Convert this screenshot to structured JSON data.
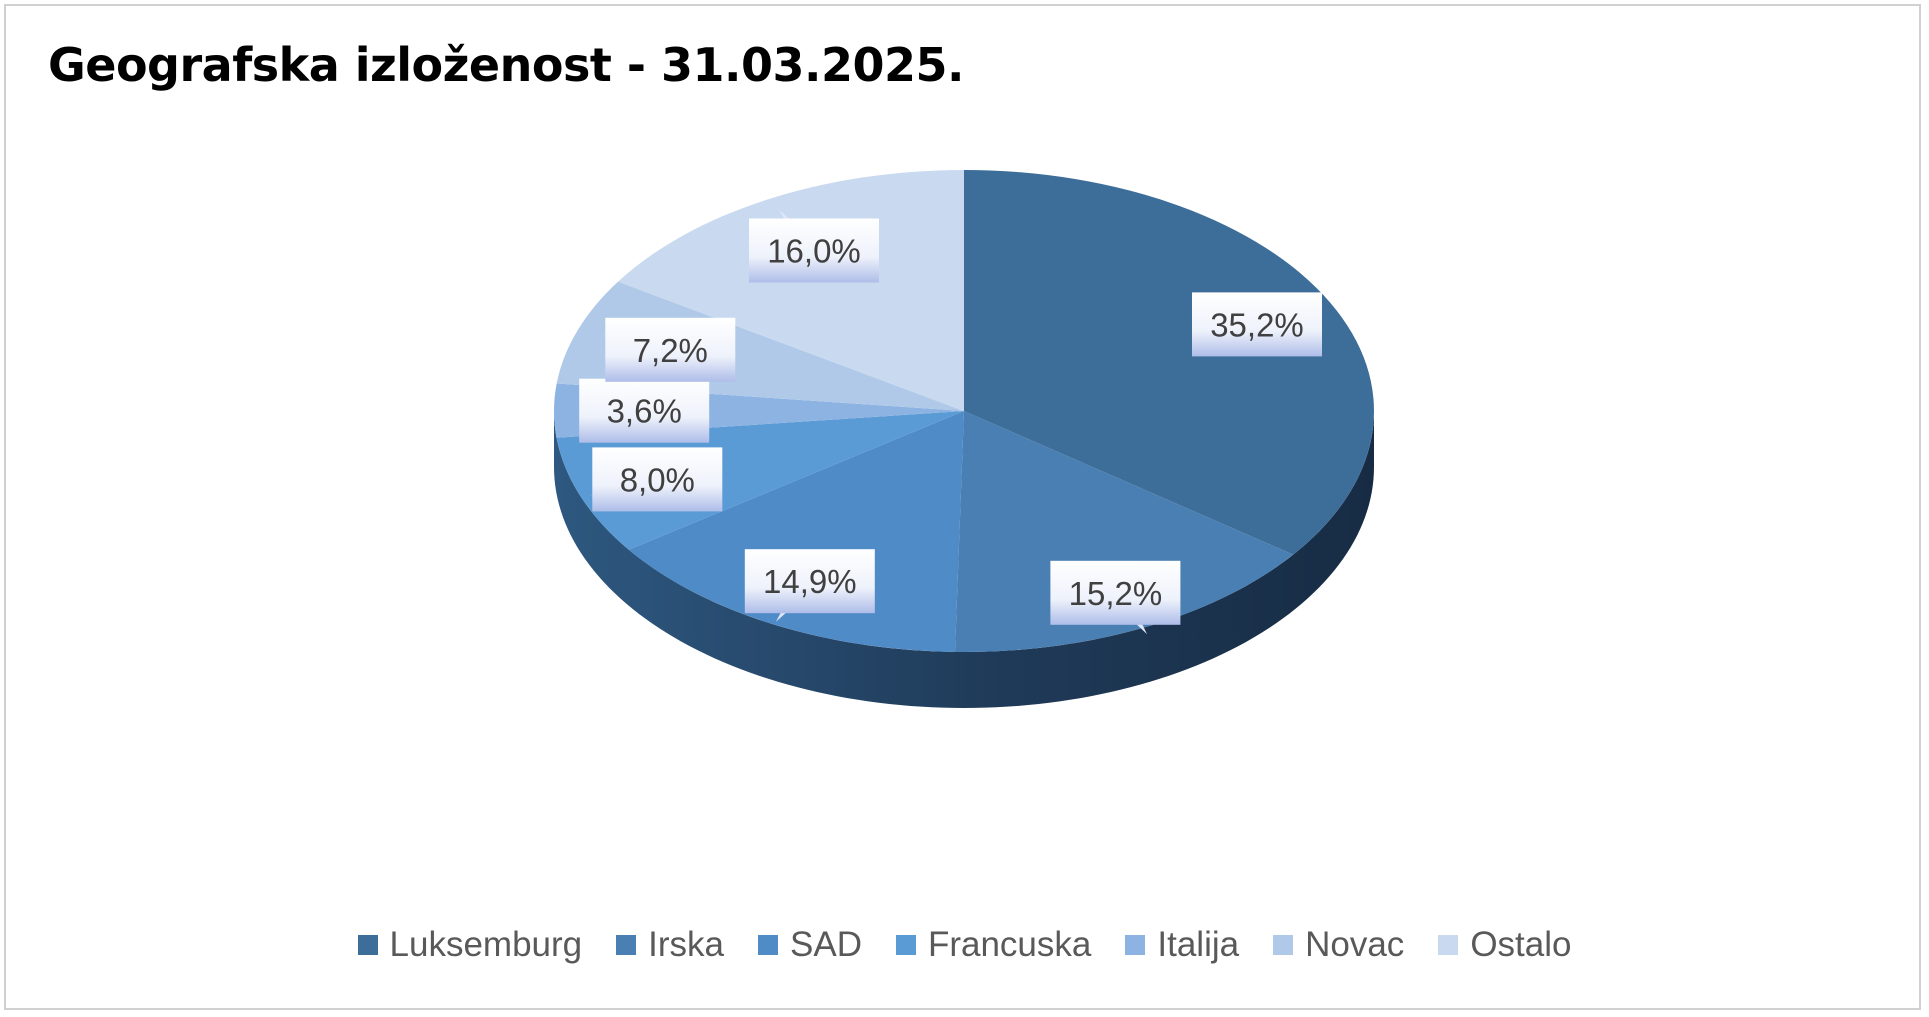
{
  "chart_data": {
    "type": "pie",
    "title": "Geografska izloženost - 31.03.2025.",
    "categories": [
      "Luksemburg",
      "Irska",
      "SAD",
      "Francuska",
      "Italija",
      "Novac",
      "Ostalo"
    ],
    "values": [
      35.2,
      15.2,
      14.9,
      8.0,
      3.6,
      7.2,
      16.0
    ],
    "data_labels": [
      "35,2%",
      "15,2%",
      "14,9%",
      "8,0%",
      "3,6%",
      "7,2%",
      "16,0%"
    ],
    "colors": [
      "#3d6d99",
      "#4a7fb3",
      "#4f8bc6",
      "#5b9bd5",
      "#8db3e2",
      "#b0c9e8",
      "#c9daf0"
    ],
    "legend_position": "bottom",
    "style": "3d-pie"
  }
}
